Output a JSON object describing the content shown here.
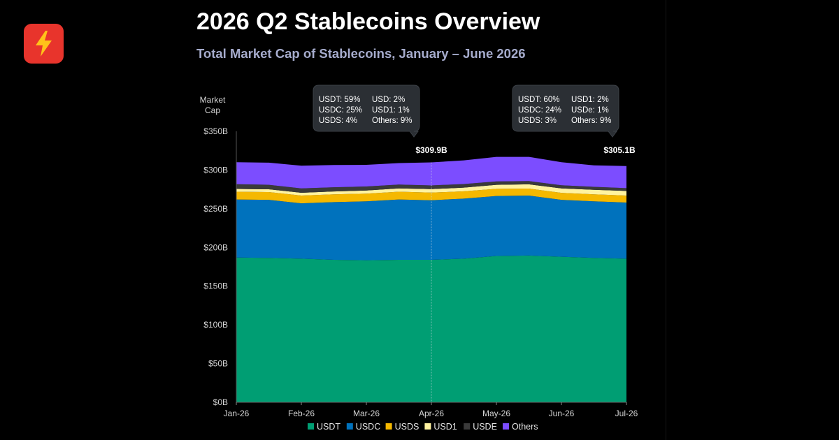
{
  "logo": {
    "icon": "lightning-bolt-icon",
    "bg": "#e8342c",
    "bolt": "#ffc21a"
  },
  "header": {
    "title": "2026 Q2 Stablecoins Overview",
    "subtitle": "Total Market Cap of Stablecoins, January – June 2026"
  },
  "chart_data": {
    "type": "area",
    "stacked": true,
    "title": "2026 Q2 Stablecoins Overview",
    "subtitle": "Total Market Cap of Stablecoins, January – June 2026",
    "ylabel": [
      "Market",
      "Cap"
    ],
    "ylim": [
      0,
      350
    ],
    "y_ticks": [
      "$0B",
      "$50B",
      "$100B",
      "$150B",
      "$200B",
      "$250B",
      "$300B",
      "$350B"
    ],
    "y_tick_values": [
      0,
      50,
      100,
      150,
      200,
      250,
      300,
      350
    ],
    "x_ticks": [
      "Jan-26",
      "Feb-26",
      "Mar-26",
      "Apr-26",
      "May-26",
      "Jun-26",
      "Jul-26"
    ],
    "x": [
      "Jan-26",
      "Jan-26 (mid)",
      "Feb-26",
      "Feb-26 (mid)",
      "Mar-26",
      "Mar-26 (mid)",
      "Apr-26",
      "Apr-26 (mid)",
      "May-26",
      "May-26 (mid)",
      "Jun-26",
      "Jun-26 (mid)",
      "Jul-26"
    ],
    "grid": false,
    "legend_position": "bottom-center",
    "series": [
      {
        "name": "USDT",
        "color": "#009e73",
        "values": [
          187,
          186.5,
          185.5,
          184,
          183.5,
          184,
          184,
          185.5,
          189,
          189.5,
          188,
          186.5,
          185.5
        ]
      },
      {
        "name": "USDC",
        "color": "#0072bd",
        "values": [
          75,
          75,
          71.5,
          74.5,
          76,
          78,
          77,
          77.5,
          77.5,
          77.5,
          73.5,
          73,
          72.5
        ]
      },
      {
        "name": "USDS",
        "color": "#f5b800",
        "values": [
          10,
          10,
          10,
          10,
          10,
          10,
          9.8,
          9.5,
          9.2,
          9,
          9,
          9,
          9
        ]
      },
      {
        "name": "USD1",
        "color": "#fff3a0",
        "values": [
          3.6,
          3.6,
          3.6,
          3.8,
          4,
          4.2,
          4.5,
          4.8,
          5.2,
          5.5,
          5.8,
          6,
          6
        ]
      },
      {
        "name": "USDE",
        "color": "#3a3a3a",
        "values": [
          6,
          5.8,
          5.6,
          5.4,
          5.2,
          5,
          4.8,
          4.6,
          4.4,
          4.2,
          4,
          3.8,
          3.6
        ]
      },
      {
        "name": "Others",
        "color": "#7c4dff",
        "values": [
          28.4,
          28.6,
          29.3,
          28.8,
          28,
          27.8,
          29.8,
          30.6,
          31.7,
          31.3,
          29.7,
          27.7,
          28.5
        ]
      }
    ],
    "marker": {
      "x": "Apr-26",
      "label": "$309.9B"
    },
    "end_label": "$305.1B",
    "tooltips": [
      {
        "rows": [
          [
            "USDT: 59%",
            "USD: 2%"
          ],
          [
            "USDC: 25%",
            "USD1: 1%"
          ],
          [
            "USDS: 4%",
            "Others: 9%"
          ]
        ]
      },
      {
        "rows": [
          [
            "USDT: 60%",
            "USD1: 2%"
          ],
          [
            "USDC: 24%",
            "USDe: 1%"
          ],
          [
            "USDS: 3%",
            "Others: 9%"
          ]
        ]
      }
    ],
    "legend": [
      "USDT",
      "USDC",
      "USDS",
      "USD1",
      "USDE",
      "Others"
    ]
  }
}
